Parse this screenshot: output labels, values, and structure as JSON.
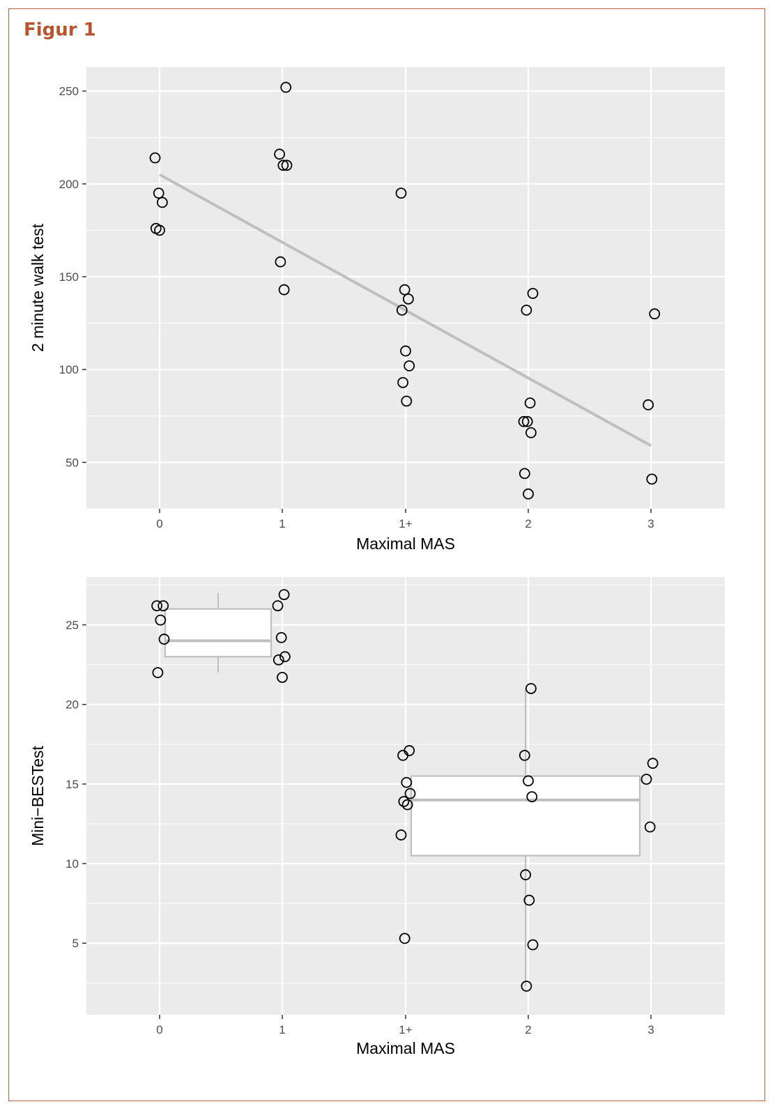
{
  "figure": {
    "title": "Figur 1"
  },
  "colors": {
    "panel": "#ebebeb",
    "grid": "#ffffff",
    "trend": "#bfbfbf",
    "box": "#bfbfbf",
    "point_stroke": "#000000",
    "title": "#b9542d"
  },
  "chart_data": [
    {
      "type": "scatter",
      "xlabel": "Maximal MAS",
      "ylabel": "2 minute walk test",
      "categories": [
        "0",
        "1",
        "1+",
        "2",
        "3"
      ],
      "yticks": [
        50,
        100,
        150,
        200,
        250
      ],
      "ylim": [
        25,
        263
      ],
      "grid": true,
      "trend_line": {
        "from": {
          "x": "0",
          "y": 205
        },
        "to": {
          "x": "3",
          "y": 59
        }
      },
      "points": [
        {
          "x": "0",
          "y": 214
        },
        {
          "x": "0",
          "y": 195
        },
        {
          "x": "0",
          "y": 190
        },
        {
          "x": "0",
          "y": 176
        },
        {
          "x": "0",
          "y": 175
        },
        {
          "x": "1",
          "y": 252
        },
        {
          "x": "1",
          "y": 216
        },
        {
          "x": "1",
          "y": 210
        },
        {
          "x": "1",
          "y": 210
        },
        {
          "x": "1",
          "y": 158
        },
        {
          "x": "1",
          "y": 143
        },
        {
          "x": "1+",
          "y": 195
        },
        {
          "x": "1+",
          "y": 143
        },
        {
          "x": "1+",
          "y": 138
        },
        {
          "x": "1+",
          "y": 132
        },
        {
          "x": "1+",
          "y": 110
        },
        {
          "x": "1+",
          "y": 102
        },
        {
          "x": "1+",
          "y": 93
        },
        {
          "x": "1+",
          "y": 83
        },
        {
          "x": "2",
          "y": 141
        },
        {
          "x": "2",
          "y": 132
        },
        {
          "x": "2",
          "y": 82
        },
        {
          "x": "2",
          "y": 72
        },
        {
          "x": "2",
          "y": 72
        },
        {
          "x": "2",
          "y": 66
        },
        {
          "x": "2",
          "y": 44
        },
        {
          "x": "2",
          "y": 33
        },
        {
          "x": "3",
          "y": 130
        },
        {
          "x": "3",
          "y": 81
        },
        {
          "x": "3",
          "y": 41
        }
      ]
    },
    {
      "type": "box",
      "xlabel": "Maximal MAS",
      "ylabel": "Mini−BESTest",
      "categories": [
        "0",
        "1",
        "1+",
        "2",
        "3"
      ],
      "yticks": [
        5,
        10,
        15,
        20,
        25
      ],
      "ylim": [
        0.5,
        28
      ],
      "grid": true,
      "boxes": [
        {
          "from": "0",
          "to": "1",
          "whisker_low": 22,
          "q1": 23,
          "median": 24,
          "q3": 26,
          "whisker_high": 27
        },
        {
          "from": "1+",
          "to": "3",
          "whisker_low": 2.3,
          "q1": 10.5,
          "median": 14,
          "q3": 15.5,
          "whisker_high": 21
        }
      ],
      "points": [
        {
          "x": "0",
          "y": 26.2
        },
        {
          "x": "0",
          "y": 26.2
        },
        {
          "x": "0",
          "y": 25.3
        },
        {
          "x": "0",
          "y": 24.1
        },
        {
          "x": "0",
          "y": 22
        },
        {
          "x": "1",
          "y": 26.9
        },
        {
          "x": "1",
          "y": 26.2
        },
        {
          "x": "1",
          "y": 24.2
        },
        {
          "x": "1",
          "y": 23
        },
        {
          "x": "1",
          "y": 22.8
        },
        {
          "x": "1",
          "y": 21.7
        },
        {
          "x": "1+",
          "y": 17.1
        },
        {
          "x": "1+",
          "y": 16.8
        },
        {
          "x": "1+",
          "y": 15.1
        },
        {
          "x": "1+",
          "y": 14.4
        },
        {
          "x": "1+",
          "y": 13.9
        },
        {
          "x": "1+",
          "y": 13.7
        },
        {
          "x": "1+",
          "y": 11.8
        },
        {
          "x": "1+",
          "y": 5.3
        },
        {
          "x": "2",
          "y": 21
        },
        {
          "x": "2",
          "y": 16.8
        },
        {
          "x": "2",
          "y": 15.2
        },
        {
          "x": "2",
          "y": 14.2
        },
        {
          "x": "2",
          "y": 9.3
        },
        {
          "x": "2",
          "y": 7.7
        },
        {
          "x": "2",
          "y": 4.9
        },
        {
          "x": "2",
          "y": 2.3
        },
        {
          "x": "3",
          "y": 16.3
        },
        {
          "x": "3",
          "y": 15.3
        },
        {
          "x": "3",
          "y": 12.3
        }
      ]
    }
  ]
}
